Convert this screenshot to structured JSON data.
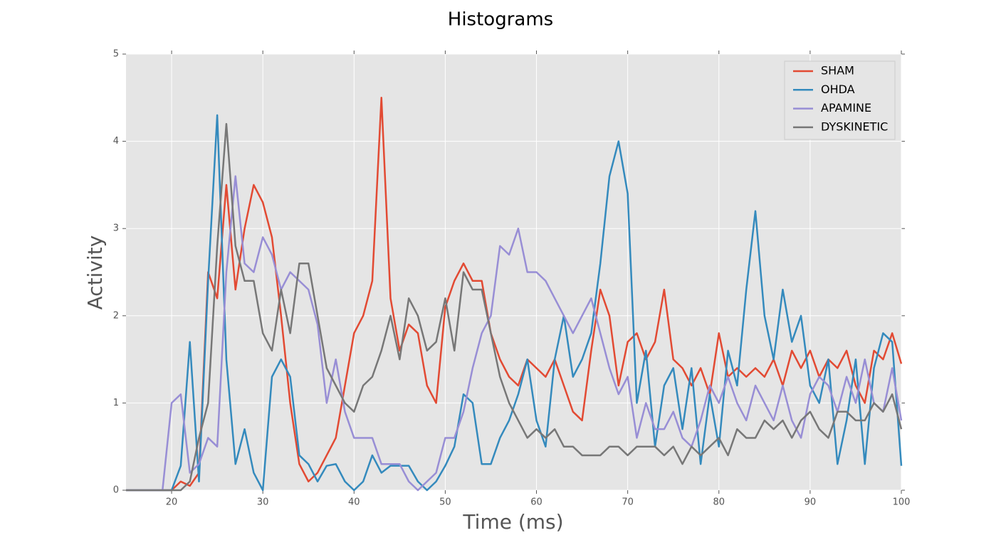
{
  "chart_data": {
    "type": "line",
    "title": "Histograms",
    "x_label": "Time (ms)",
    "y_label": "Activity",
    "x": [
      15,
      16,
      17,
      18,
      19,
      20,
      21,
      22,
      23,
      24,
      25,
      26,
      27,
      28,
      29,
      30,
      31,
      32,
      33,
      34,
      35,
      36,
      37,
      38,
      39,
      40,
      41,
      42,
      43,
      44,
      45,
      46,
      47,
      48,
      49,
      50,
      51,
      52,
      53,
      54,
      55,
      56,
      57,
      58,
      59,
      60,
      61,
      62,
      63,
      64,
      65,
      66,
      67,
      68,
      69,
      70,
      71,
      72,
      73,
      74,
      75,
      76,
      77,
      78,
      79,
      80,
      81,
      82,
      83,
      84,
      85,
      86,
      87,
      88,
      89,
      90,
      91,
      92,
      93,
      94,
      95,
      96,
      97,
      98,
      99,
      100
    ],
    "series": [
      {
        "name": "SHAM",
        "color": "#e24a33",
        "values": [
          0,
          0,
          0,
          0,
          0,
          0,
          0.1,
          0.05,
          0.2,
          2.5,
          2.2,
          3.5,
          2.3,
          3.0,
          3.5,
          3.3,
          2.9,
          2.0,
          1.0,
          0.3,
          0.1,
          0.2,
          0.4,
          0.6,
          1.2,
          1.8,
          2.0,
          2.4,
          4.5,
          2.2,
          1.6,
          1.9,
          1.8,
          1.2,
          1.0,
          2.1,
          2.4,
          2.6,
          2.4,
          2.4,
          1.8,
          1.5,
          1.3,
          1.2,
          1.5,
          1.4,
          1.3,
          1.5,
          1.2,
          0.9,
          0.8,
          1.6,
          2.3,
          2.0,
          1.2,
          1.7,
          1.8,
          1.5,
          1.7,
          2.3,
          1.5,
          1.4,
          1.2,
          1.4,
          1.1,
          1.8,
          1.3,
          1.4,
          1.3,
          1.4,
          1.3,
          1.5,
          1.2,
          1.6,
          1.4,
          1.6,
          1.3,
          1.5,
          1.4,
          1.6,
          1.2,
          1.0,
          1.6,
          1.5,
          1.8,
          1.45
        ]
      },
      {
        "name": "OHDA",
        "color": "#348abd",
        "values": [
          0,
          0,
          0,
          0,
          0,
          0,
          0.28,
          1.7,
          0.1,
          2.4,
          4.3,
          1.5,
          0.3,
          0.7,
          0.2,
          0,
          1.3,
          1.5,
          1.3,
          0.4,
          0.3,
          0.1,
          0.28,
          0.3,
          0.1,
          0,
          0.1,
          0.4,
          0.2,
          0.28,
          0.28,
          0.28,
          0.1,
          0,
          0.1,
          0.28,
          0.5,
          1.1,
          1.0,
          0.3,
          0.3,
          0.6,
          0.8,
          1.1,
          1.5,
          0.8,
          0.5,
          1.5,
          2.0,
          1.3,
          1.5,
          1.8,
          2.6,
          3.6,
          4.0,
          3.4,
          1.0,
          1.6,
          0.5,
          1.2,
          1.4,
          0.7,
          1.4,
          0.3,
          1.1,
          0.5,
          1.6,
          1.2,
          2.3,
          3.2,
          2.0,
          1.5,
          2.3,
          1.7,
          2.0,
          1.2,
          1.0,
          1.5,
          0.3,
          0.8,
          1.5,
          0.3,
          1.4,
          1.8,
          1.7,
          0.28
        ]
      },
      {
        "name": "APAMINE",
        "color": "#988ed5",
        "values": [
          0,
          0,
          0,
          0,
          0,
          1.0,
          1.1,
          0.2,
          0.3,
          0.6,
          0.5,
          2.5,
          3.6,
          2.6,
          2.5,
          2.9,
          2.7,
          2.3,
          2.5,
          2.4,
          2.3,
          1.9,
          1.0,
          1.5,
          0.9,
          0.6,
          0.6,
          0.6,
          0.3,
          0.3,
          0.3,
          0.1,
          0,
          0.1,
          0.2,
          0.6,
          0.6,
          0.9,
          1.4,
          1.8,
          2.0,
          2.8,
          2.7,
          3.0,
          2.5,
          2.5,
          2.4,
          2.2,
          2.0,
          1.8,
          2.0,
          2.2,
          1.8,
          1.4,
          1.1,
          1.3,
          0.6,
          1.0,
          0.7,
          0.7,
          0.9,
          0.6,
          0.5,
          0.8,
          1.2,
          1.0,
          1.3,
          1.0,
          0.8,
          1.2,
          1.0,
          0.8,
          1.2,
          0.8,
          0.6,
          1.1,
          1.3,
          1.2,
          0.9,
          1.3,
          1.0,
          1.5,
          1.0,
          0.9,
          1.4,
          0.8
        ]
      },
      {
        "name": "DYSKINETIC",
        "color": "#777777",
        "values": [
          0,
          0,
          0,
          0,
          0,
          0,
          0,
          0.1,
          0.6,
          1.0,
          2.8,
          4.2,
          2.8,
          2.4,
          2.4,
          1.8,
          1.6,
          2.3,
          1.8,
          2.6,
          2.6,
          2.0,
          1.4,
          1.2,
          1.0,
          0.9,
          1.2,
          1.3,
          1.6,
          2.0,
          1.5,
          2.2,
          2.0,
          1.6,
          1.7,
          2.2,
          1.6,
          2.5,
          2.3,
          2.3,
          1.8,
          1.3,
          1.0,
          0.8,
          0.6,
          0.7,
          0.6,
          0.7,
          0.5,
          0.5,
          0.4,
          0.4,
          0.4,
          0.5,
          0.5,
          0.4,
          0.5,
          0.5,
          0.5,
          0.4,
          0.5,
          0.3,
          0.5,
          0.4,
          0.5,
          0.6,
          0.4,
          0.7,
          0.6,
          0.6,
          0.8,
          0.7,
          0.8,
          0.6,
          0.8,
          0.9,
          0.7,
          0.6,
          0.9,
          0.9,
          0.8,
          0.8,
          1.0,
          0.9,
          1.1,
          0.7
        ]
      }
    ],
    "xlim": [
      15,
      100
    ],
    "xticks": [
      20,
      30,
      40,
      50,
      60,
      70,
      80,
      90,
      100
    ],
    "ylim": [
      0,
      5
    ],
    "yticks": [
      0,
      1,
      2,
      3,
      4,
      5
    ],
    "grid": true,
    "legend": "upper right"
  }
}
